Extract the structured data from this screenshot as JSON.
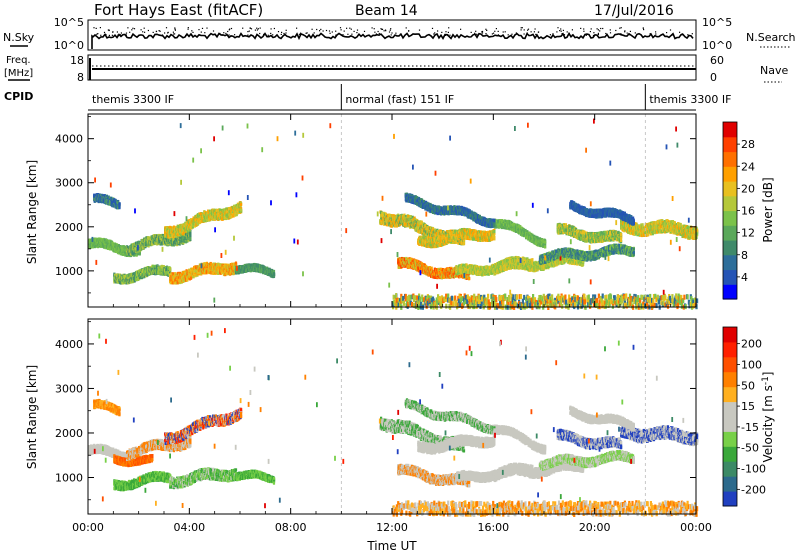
{
  "header": {
    "station": "Fort Hays East (fitACF)",
    "beam": "Beam 14",
    "date": "17/Jul/2016"
  },
  "side_labels": {
    "nsky": "N.Sky",
    "nsearch": "N.Search",
    "freq_line1": "Freq.",
    "freq_line2": "[MHz]",
    "nave": "Nave",
    "cpid": "CPID"
  },
  "status_ticks": {
    "noise_left": [
      "10^5",
      "10^0"
    ],
    "noise_right": [
      "10^5",
      "10^0"
    ],
    "freq_left": [
      "18",
      "8"
    ],
    "freq_right": [
      "60",
      "0"
    ]
  },
  "cpid_segments": [
    {
      "label": "themis 3300 IF",
      "start_h": 0,
      "end_h": 10
    },
    {
      "label": "normal (fast) 151 IF",
      "start_h": 10,
      "end_h": 22
    },
    {
      "label": "themis 3300 IF",
      "start_h": 22,
      "end_h": 24
    }
  ],
  "chart_data": [
    {
      "type": "heatmap",
      "panel": "power",
      "ylabel": "Slant Range [km]",
      "xlabel": "",
      "xlim": [
        0,
        24
      ],
      "ylim": [
        180,
        4560
      ],
      "x_ticks": [
        "00:00",
        "04:00",
        "08:00",
        "12:00",
        "16:00",
        "20:00",
        "00:00"
      ],
      "y_ticks": [
        "1000",
        "2000",
        "3000",
        "4000"
      ],
      "colorbar": {
        "label": "Power [dB]",
        "tick_labels": [
          "4",
          "8",
          "12",
          "16",
          "20",
          "24",
          "28"
        ],
        "colors": [
          "#0000ff",
          "#2554b5",
          "#2d6e9a",
          "#3f8a6a",
          "#5aa85a",
          "#7bc24a",
          "#b5c83a",
          "#e8c020",
          "#ffa000",
          "#ff7000",
          "#ff4000",
          "#e00000"
        ]
      },
      "echo_bands": [
        {
          "t0": 0.0,
          "t1": 2.0,
          "r0": 1650,
          "r1": 1500,
          "w": 180,
          "c": [
            4,
            5
          ]
        },
        {
          "t0": 1.5,
          "t1": 4.0,
          "r0": 1550,
          "r1": 1850,
          "w": 200,
          "c": [
            3,
            4,
            6
          ]
        },
        {
          "t0": 3.0,
          "t1": 6.0,
          "r0": 1900,
          "r1": 2500,
          "w": 220,
          "c": [
            5,
            6,
            7,
            8
          ]
        },
        {
          "t0": 0.2,
          "t1": 1.2,
          "r0": 2650,
          "r1": 2550,
          "w": 160,
          "c": [
            1,
            2,
            4
          ]
        },
        {
          "t0": 1.0,
          "t1": 3.2,
          "r0": 870,
          "r1": 1050,
          "w": 180,
          "c": [
            3,
            5,
            6
          ]
        },
        {
          "t0": 3.2,
          "t1": 5.8,
          "r0": 900,
          "r1": 1150,
          "w": 220,
          "c": [
            6,
            7,
            8,
            9
          ]
        },
        {
          "t0": 5.8,
          "t1": 7.3,
          "r0": 1100,
          "r1": 1000,
          "w": 140,
          "c": [
            3,
            4
          ]
        },
        {
          "t0": 11.5,
          "t1": 14.8,
          "r0": 2300,
          "r1": 1700,
          "w": 260,
          "c": [
            4,
            6,
            7,
            8
          ]
        },
        {
          "t0": 13.0,
          "t1": 16.0,
          "r0": 1700,
          "r1": 1900,
          "w": 200,
          "c": [
            5,
            7,
            8
          ]
        },
        {
          "t0": 16.0,
          "t1": 18.0,
          "r0": 2150,
          "r1": 1700,
          "w": 160,
          "c": [
            4,
            5
          ]
        },
        {
          "t0": 12.2,
          "t1": 15.0,
          "r0": 1200,
          "r1": 900,
          "w": 200,
          "c": [
            6,
            8,
            9,
            10
          ]
        },
        {
          "t0": 14.5,
          "t1": 17.5,
          "r0": 1000,
          "r1": 1250,
          "w": 180,
          "c": [
            5,
            6,
            7
          ]
        },
        {
          "t0": 12.5,
          "t1": 16.0,
          "r0": 2650,
          "r1": 2150,
          "w": 160,
          "c": [
            1,
            2,
            3
          ]
        },
        {
          "t0": 16.0,
          "t1": 19.5,
          "r0": 1100,
          "r1": 1300,
          "w": 200,
          "c": [
            5,
            6,
            7
          ]
        },
        {
          "t0": 17.8,
          "t1": 21.5,
          "r0": 1350,
          "r1": 1500,
          "w": 180,
          "c": [
            2,
            3,
            5
          ]
        },
        {
          "t0": 18.5,
          "t1": 21.0,
          "r0": 1950,
          "r1": 1750,
          "w": 200,
          "c": [
            4,
            5,
            7
          ]
        },
        {
          "t0": 21.0,
          "t1": 24.0,
          "r0": 2050,
          "r1": 1950,
          "w": 260,
          "c": [
            5,
            6,
            7,
            8
          ]
        },
        {
          "t0": 19.0,
          "t1": 21.5,
          "r0": 2500,
          "r1": 2200,
          "w": 160,
          "c": [
            1,
            2
          ]
        },
        {
          "t0": 12.0,
          "t1": 24.0,
          "r0": 330,
          "r1": 330,
          "w": 260,
          "c": [
            2,
            5,
            6,
            7,
            9
          ],
          "sparse": true
        }
      ]
    },
    {
      "type": "heatmap",
      "panel": "velocity",
      "ylabel": "Slant Range [km]",
      "xlabel": "Time UT",
      "xlim": [
        0,
        24
      ],
      "ylim": [
        180,
        4560
      ],
      "x_ticks": [
        "00:00",
        "04:00",
        "08:00",
        "12:00",
        "16:00",
        "20:00",
        "00:00"
      ],
      "y_ticks": [
        "1000",
        "2000",
        "3000",
        "4000"
      ],
      "colorbar": {
        "label": "Velocity [m s^-1]",
        "tick_labels": [
          "200",
          "100",
          "50",
          "15",
          "-15",
          "-50",
          "-100",
          "-200"
        ],
        "colors": [
          "#2040c0",
          "#2c6a8c",
          "#3c8a66",
          "#3aa83a",
          "#78d048",
          "#c8c8c0",
          "#c8c8c0",
          "#ffb020",
          "#ff8000",
          "#ff5000",
          "#ff2000",
          "#e00000"
        ]
      },
      "echo_bands": [
        {
          "t0": 0.0,
          "t1": 2.0,
          "r0": 1650,
          "r1": 1500,
          "w": 180,
          "c": [
            5
          ]
        },
        {
          "t0": 1.0,
          "t1": 2.5,
          "r0": 1450,
          "r1": 1400,
          "w": 140,
          "c": [
            8,
            9
          ]
        },
        {
          "t0": 1.5,
          "t1": 4.0,
          "r0": 1600,
          "r1": 1850,
          "w": 200,
          "c": [
            5,
            8
          ]
        },
        {
          "t0": 3.0,
          "t1": 6.0,
          "r0": 1900,
          "r1": 2500,
          "w": 220,
          "c": [
            5,
            8,
            0,
            10
          ]
        },
        {
          "t0": 0.2,
          "t1": 1.2,
          "r0": 2650,
          "r1": 2550,
          "w": 160,
          "c": [
            8,
            7
          ]
        },
        {
          "t0": 1.0,
          "t1": 3.2,
          "r0": 870,
          "r1": 1050,
          "w": 180,
          "c": [
            3,
            4
          ]
        },
        {
          "t0": 3.2,
          "t1": 5.8,
          "r0": 950,
          "r1": 1150,
          "w": 220,
          "c": [
            3,
            4,
            5
          ]
        },
        {
          "t0": 5.8,
          "t1": 7.3,
          "r0": 1100,
          "r1": 1000,
          "w": 140,
          "c": [
            3,
            4
          ]
        },
        {
          "t0": 11.5,
          "t1": 14.8,
          "r0": 2300,
          "r1": 1700,
          "w": 260,
          "c": [
            5,
            3
          ]
        },
        {
          "t0": 13.0,
          "t1": 16.0,
          "r0": 1700,
          "r1": 1900,
          "w": 200,
          "c": [
            5
          ]
        },
        {
          "t0": 16.0,
          "t1": 18.0,
          "r0": 2150,
          "r1": 1700,
          "w": 160,
          "c": [
            5
          ]
        },
        {
          "t0": 12.2,
          "t1": 15.0,
          "r0": 1200,
          "r1": 900,
          "w": 200,
          "c": [
            5,
            8
          ]
        },
        {
          "t0": 14.5,
          "t1": 17.5,
          "r0": 1000,
          "r1": 1250,
          "w": 180,
          "c": [
            5
          ]
        },
        {
          "t0": 12.5,
          "t1": 16.0,
          "r0": 2650,
          "r1": 2150,
          "w": 160,
          "c": [
            5,
            3
          ]
        },
        {
          "t0": 16.0,
          "t1": 19.5,
          "r0": 1100,
          "r1": 1300,
          "w": 200,
          "c": [
            5
          ]
        },
        {
          "t0": 17.8,
          "t1": 21.5,
          "r0": 1350,
          "r1": 1500,
          "w": 180,
          "c": [
            5,
            4
          ]
        },
        {
          "t0": 18.5,
          "t1": 21.0,
          "r0": 1950,
          "r1": 1750,
          "w": 200,
          "c": [
            5,
            0
          ]
        },
        {
          "t0": 21.0,
          "t1": 24.0,
          "r0": 2050,
          "r1": 1950,
          "w": 260,
          "c": [
            5,
            0
          ]
        },
        {
          "t0": 19.0,
          "t1": 21.5,
          "r0": 2500,
          "r1": 2200,
          "w": 160,
          "c": [
            5
          ]
        },
        {
          "t0": 12.0,
          "t1": 24.0,
          "r0": 330,
          "r1": 330,
          "w": 260,
          "c": [
            7,
            8,
            5
          ],
          "sparse": true
        }
      ]
    }
  ]
}
